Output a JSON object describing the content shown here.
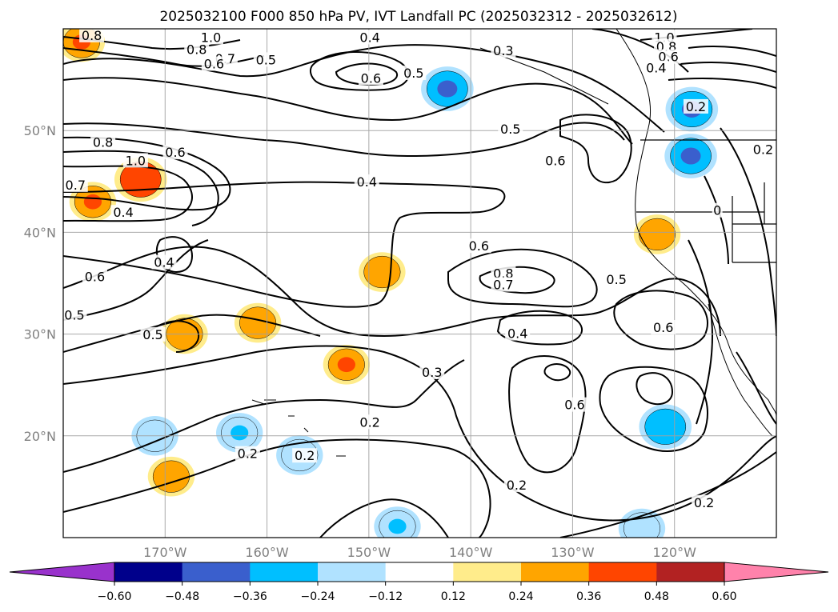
{
  "title": "2025032100 F000 850 hPa PV, IVT Landfall PC (2025032312 - 2025032612)",
  "map": {
    "lon_range": [
      -180,
      -110
    ],
    "lat_range": [
      10,
      60
    ],
    "lon_ticks": [
      {
        "value": -170,
        "label": "170°W"
      },
      {
        "value": -160,
        "label": "160°W"
      },
      {
        "value": -150,
        "label": "150°W"
      },
      {
        "value": -140,
        "label": "140°W"
      },
      {
        "value": -130,
        "label": "130°W"
      },
      {
        "value": -120,
        "label": "120°W"
      }
    ],
    "lat_ticks": [
      {
        "value": 20,
        "label": "20°N"
      },
      {
        "value": 30,
        "label": "30°N"
      },
      {
        "value": 40,
        "label": "40°N"
      },
      {
        "value": 50,
        "label": "50°N"
      }
    ],
    "grid": true
  },
  "colorbar": {
    "levels": [
      -0.72,
      -0.6,
      -0.48,
      -0.36,
      -0.24,
      -0.12,
      0.12,
      0.24,
      0.36,
      0.48,
      0.6,
      0.72
    ],
    "colors": [
      "#9932cc",
      "#00008b",
      "#3a5fcd",
      "#00bfff",
      "#b0e2ff",
      "#ffffff",
      "#ffec8b",
      "#ffa500",
      "#ff4500",
      "#b22222",
      "#ff82ab"
    ],
    "tick_labels": [
      "−0.60",
      "−0.48",
      "−0.36",
      "−0.24",
      "−0.12",
      "0.12",
      "0.24",
      "0.36",
      "0.48",
      "0.60"
    ]
  },
  "chart_data": {
    "type": "heatmap",
    "title": "2025032100 F000 850 hPa PV, IVT Landfall PC (2025032312 - 2025032612)",
    "x_axis": {
      "range": [
        -180,
        -110
      ],
      "units": "°W"
    },
    "y_axis": {
      "range": [
        10,
        60
      ],
      "units": "°N"
    },
    "pv_contour_labels": [
      {
        "text": "1.0",
        "lon": -165.5,
        "lat": 59.1
      },
      {
        "text": "0.8",
        "lon": -166.9,
        "lat": 57.9
      },
      {
        "text": "0.7",
        "lon": -164.1,
        "lat": 57.0
      },
      {
        "text": "0.6",
        "lon": -165.2,
        "lat": 56.5
      },
      {
        "text": "0.5",
        "lon": -160.1,
        "lat": 56.9
      },
      {
        "text": "0.4",
        "lon": -149.9,
        "lat": 59.1
      },
      {
        "text": "0.6",
        "lon": -149.8,
        "lat": 55.1
      },
      {
        "text": "0.5",
        "lon": -145.6,
        "lat": 55.6
      },
      {
        "text": "0.8",
        "lon": -177.2,
        "lat": 59.3
      },
      {
        "text": "0.3",
        "lon": -136.8,
        "lat": 57.8
      },
      {
        "text": "0.5",
        "lon": -136.1,
        "lat": 50.1
      },
      {
        "text": "0.6",
        "lon": -131.7,
        "lat": 47.0
      },
      {
        "text": "1.0",
        "lon": -121.0,
        "lat": 59.1
      },
      {
        "text": "0.8",
        "lon": -120.8,
        "lat": 58.2
      },
      {
        "text": "0.6",
        "lon": -120.6,
        "lat": 57.2
      },
      {
        "text": "0.4",
        "lon": -121.8,
        "lat": 56.1
      },
      {
        "text": "0.2",
        "lon": -117.9,
        "lat": 52.3
      },
      {
        "text": "0.2",
        "lon": -111.3,
        "lat": 48.1
      },
      {
        "text": "0.8",
        "lon": -176.1,
        "lat": 48.8
      },
      {
        "text": "1.0",
        "lon": -172.9,
        "lat": 47.0
      },
      {
        "text": "0.6",
        "lon": -169.0,
        "lat": 47.8
      },
      {
        "text": "0.7",
        "lon": -178.8,
        "lat": 44.6
      },
      {
        "text": "0.4",
        "lon": -174.1,
        "lat": 41.9
      },
      {
        "text": "0.4",
        "lon": -150.2,
        "lat": 44.9
      },
      {
        "text": "0.4",
        "lon": -170.1,
        "lat": 37.0
      },
      {
        "text": "0.6",
        "lon": -176.9,
        "lat": 35.6
      },
      {
        "text": "0.5",
        "lon": -178.9,
        "lat": 31.8
      },
      {
        "text": "0.5",
        "lon": -171.2,
        "lat": 29.9
      },
      {
        "text": "0.6",
        "lon": -139.2,
        "lat": 38.6
      },
      {
        "text": "0.8",
        "lon": -136.8,
        "lat": 35.9
      },
      {
        "text": "0.7",
        "lon": -136.8,
        "lat": 34.8
      },
      {
        "text": "0.4",
        "lon": -135.4,
        "lat": 30.0
      },
      {
        "text": "0.5",
        "lon": -125.7,
        "lat": 35.3
      },
      {
        "text": "0.6",
        "lon": -121.1,
        "lat": 30.6
      },
      {
        "text": "0.3",
        "lon": -143.8,
        "lat": 26.2
      },
      {
        "text": "0.2",
        "lon": -149.9,
        "lat": 21.3
      },
      {
        "text": "0.6",
        "lon": -129.8,
        "lat": 23.0
      },
      {
        "text": "0.2",
        "lon": -161.9,
        "lat": 18.2
      },
      {
        "text": "0.2",
        "lon": -156.3,
        "lat": 18.0
      },
      {
        "text": "0.2",
        "lon": -135.5,
        "lat": 15.1
      },
      {
        "text": "0.2",
        "lon": -117.1,
        "lat": 13.4
      },
      {
        "text": "0",
        "lon": -115.8,
        "lat": 42.1
      }
    ],
    "pc_anomalies": [
      {
        "lon": -142.3,
        "lat": 54.1,
        "value": -0.36,
        "peak": -0.48
      },
      {
        "lon": -118.4,
        "lat": 47.5,
        "value": -0.36,
        "peak": -0.48
      },
      {
        "lon": -118.3,
        "lat": 52.1,
        "value": -0.36,
        "peak": -0.48
      },
      {
        "lon": -172.4,
        "lat": 45.2,
        "value": 0.36,
        "peak": 0.36
      },
      {
        "lon": -177.1,
        "lat": 43.0,
        "value": 0.24,
        "peak": 0.36
      },
      {
        "lon": -178.2,
        "lat": 58.7,
        "value": 0.24,
        "peak": 0.36
      },
      {
        "lon": -152.2,
        "lat": 27.0,
        "value": 0.24,
        "peak": 0.36
      },
      {
        "lon": -121.7,
        "lat": 39.8,
        "value": 0.24,
        "peak": 0.24
      },
      {
        "lon": -168.1,
        "lat": 30.0,
        "value": 0.24,
        "peak": 0.24
      },
      {
        "lon": -160.9,
        "lat": 31.1,
        "value": 0.24,
        "peak": 0.24
      },
      {
        "lon": -148.7,
        "lat": 36.1,
        "value": 0.24,
        "peak": 0.24
      },
      {
        "lon": -169.4,
        "lat": 16.0,
        "value": 0.24,
        "peak": 0.24
      },
      {
        "lon": -147.2,
        "lat": 11.1,
        "value": -0.24,
        "peak": -0.36
      },
      {
        "lon": -120.9,
        "lat": 20.9,
        "value": -0.36,
        "peak": -0.36
      },
      {
        "lon": -162.7,
        "lat": 20.3,
        "value": -0.24,
        "peak": -0.36
      },
      {
        "lon": -123.2,
        "lat": 10.9,
        "value": -0.24,
        "peak": -0.24
      },
      {
        "lon": -171.0,
        "lat": 20.0,
        "value": -0.24,
        "peak": -0.24
      },
      {
        "lon": -156.8,
        "lat": 18.1,
        "value": -0.24,
        "peak": -0.24
      }
    ]
  }
}
